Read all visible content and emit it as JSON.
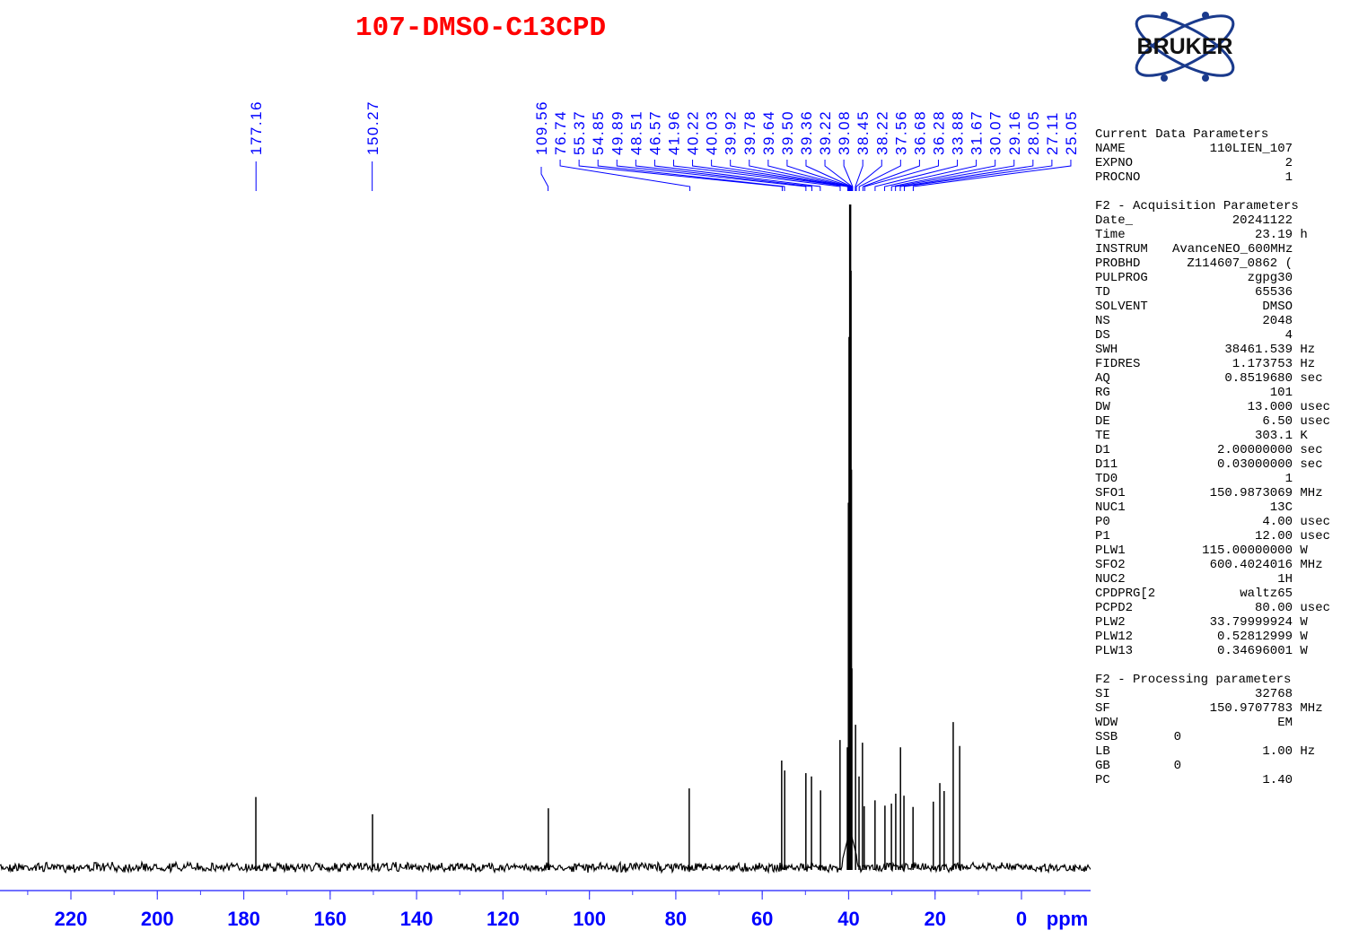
{
  "title": "107-DMSO-C13CPD",
  "logo_text": "BRUKER",
  "colors": {
    "title": "#ff0000",
    "labels": "#0000ff",
    "axis": "#0000ff",
    "spectrum": "#000000",
    "logo": "#1a3a8c"
  },
  "chart_data": {
    "type": "line",
    "title": "107-DMSO-C13CPD",
    "xlabel": "ppm",
    "xlim": [
      236.4,
      -16.0
    ],
    "x_reversed": true,
    "grid": false,
    "xticks": [
      220,
      200,
      180,
      160,
      140,
      120,
      100,
      80,
      60,
      40,
      20,
      0
    ],
    "xtick_labels": [
      "220",
      "200",
      "180",
      "160",
      "140",
      "120",
      "100",
      "80",
      "60",
      "40",
      "20",
      "0"
    ],
    "minor_tick_step": 10,
    "peak_labels": [
      "177.16",
      "150.27",
      "109.56",
      "76.74",
      "55.37",
      "54.85",
      "49.89",
      "48.51",
      "46.57",
      "41.96",
      "40.22",
      "40.03",
      "39.92",
      "39.78",
      "39.64",
      "39.50",
      "39.36",
      "39.22",
      "39.08",
      "38.45",
      "38.22",
      "37.56",
      "36.68",
      "36.28",
      "33.88",
      "31.67",
      "30.07",
      "29.16",
      "28.05",
      "27.11",
      "25.05"
    ],
    "peaks": [
      {
        "ppm": 177.2,
        "intensity": 10.6
      },
      {
        "ppm": 150.2,
        "intensity": 8.0
      },
      {
        "ppm": 109.5,
        "intensity": 8.9
      },
      {
        "ppm": 76.9,
        "intensity": 11.9
      },
      {
        "ppm": 55.5,
        "intensity": 16.1
      },
      {
        "ppm": 54.8,
        "intensity": 14.6
      },
      {
        "ppm": 49.9,
        "intensity": 14.2
      },
      {
        "ppm": 48.6,
        "intensity": 13.7
      },
      {
        "ppm": 46.5,
        "intensity": 11.6
      },
      {
        "ppm": 42.0,
        "intensity": 19.2
      },
      {
        "ppm": 40.3,
        "intensity": 18.1
      },
      {
        "ppm": 40.0,
        "intensity": 55
      },
      {
        "ppm": 39.85,
        "intensity": 80
      },
      {
        "ppm": 39.7,
        "intensity": 100
      },
      {
        "ppm": 39.6,
        "intensity": 100
      },
      {
        "ppm": 39.5,
        "intensity": 90
      },
      {
        "ppm": 39.4,
        "intensity": 60
      },
      {
        "ppm": 39.25,
        "intensity": 30
      },
      {
        "ppm": 38.4,
        "intensity": 21.5
      },
      {
        "ppm": 37.6,
        "intensity": 13.7
      },
      {
        "ppm": 36.8,
        "intensity": 18.8
      },
      {
        "ppm": 36.4,
        "intensity": 9.2
      },
      {
        "ppm": 33.9,
        "intensity": 10.1
      },
      {
        "ppm": 31.6,
        "intensity": 9.3
      },
      {
        "ppm": 30.1,
        "intensity": 9.6
      },
      {
        "ppm": 29.1,
        "intensity": 11.1
      },
      {
        "ppm": 28.0,
        "intensity": 18.1
      },
      {
        "ppm": 27.2,
        "intensity": 10.8
      },
      {
        "ppm": 25.1,
        "intensity": 9.1
      },
      {
        "ppm": 20.4,
        "intensity": 9.9
      },
      {
        "ppm": 18.9,
        "intensity": 12.7
      },
      {
        "ppm": 17.9,
        "intensity": 11.5
      },
      {
        "ppm": 15.8,
        "intensity": 21.9
      },
      {
        "ppm": 14.3,
        "intensity": 18.3
      }
    ]
  },
  "parameters": {
    "sections": [
      {
        "header": "Current Data Parameters",
        "rows": [
          {
            "name": "NAME",
            "value": "110LIEN_107",
            "unit": ""
          },
          {
            "name": "EXPNO",
            "value": "2",
            "unit": ""
          },
          {
            "name": "PROCNO",
            "value": "1",
            "unit": ""
          }
        ]
      },
      {
        "header": "F2 - Acquisition Parameters",
        "rows": [
          {
            "name": "Date_",
            "value": "20241122",
            "unit": ""
          },
          {
            "name": "Time",
            "value": "23.19",
            "unit": "h"
          },
          {
            "name": "INSTRUM",
            "value": "AvanceNEO_600MHz",
            "unit": ""
          },
          {
            "name": "PROBHD",
            "value": "Z114607_0862 (",
            "unit": ""
          },
          {
            "name": "PULPROG",
            "value": "zgpg30",
            "unit": ""
          },
          {
            "name": "TD",
            "value": "65536",
            "unit": ""
          },
          {
            "name": "SOLVENT",
            "value": "DMSO",
            "unit": ""
          },
          {
            "name": "NS",
            "value": "2048",
            "unit": ""
          },
          {
            "name": "DS",
            "value": "4",
            "unit": ""
          },
          {
            "name": "SWH",
            "value": "38461.539",
            "unit": "Hz"
          },
          {
            "name": "FIDRES",
            "value": "1.173753",
            "unit": "Hz"
          },
          {
            "name": "AQ",
            "value": "0.8519680",
            "unit": "sec"
          },
          {
            "name": "RG",
            "value": "101",
            "unit": ""
          },
          {
            "name": "DW",
            "value": "13.000",
            "unit": "usec"
          },
          {
            "name": "DE",
            "value": "6.50",
            "unit": "usec"
          },
          {
            "name": "TE",
            "value": "303.1",
            "unit": "K"
          },
          {
            "name": "D1",
            "value": "2.00000000",
            "unit": "sec"
          },
          {
            "name": "D11",
            "value": "0.03000000",
            "unit": "sec"
          },
          {
            "name": "TD0",
            "value": "1",
            "unit": ""
          },
          {
            "name": "SFO1",
            "value": "150.9873069",
            "unit": "MHz"
          },
          {
            "name": "NUC1",
            "value": "13C",
            "unit": ""
          },
          {
            "name": "P0",
            "value": "4.00",
            "unit": "usec"
          },
          {
            "name": "P1",
            "value": "12.00",
            "unit": "usec"
          },
          {
            "name": "PLW1",
            "value": "115.00000000",
            "unit": "W"
          },
          {
            "name": "SFO2",
            "value": "600.4024016",
            "unit": "MHz"
          },
          {
            "name": "NUC2",
            "value": "1H",
            "unit": ""
          },
          {
            "name": "CPDPRG[2",
            "value": "waltz65",
            "unit": ""
          },
          {
            "name": "PCPD2",
            "value": "80.00",
            "unit": "usec"
          },
          {
            "name": "PLW2",
            "value": "33.79999924",
            "unit": "W"
          },
          {
            "name": "PLW12",
            "value": "0.52812999",
            "unit": "W"
          },
          {
            "name": "PLW13",
            "value": "0.34696001",
            "unit": "W"
          }
        ]
      },
      {
        "header": "F2 - Processing parameters",
        "rows": [
          {
            "name": "SI",
            "value": "32768",
            "unit": ""
          },
          {
            "name": "SF",
            "value": "150.9707783",
            "unit": "MHz"
          },
          {
            "name": "WDW",
            "value": "EM",
            "unit": ""
          },
          {
            "name": "SSB",
            "value": "0",
            "unit": ""
          },
          {
            "name": "LB",
            "value": "1.00",
            "unit": "Hz"
          },
          {
            "name": "GB",
            "value": "0",
            "unit": ""
          },
          {
            "name": "PC",
            "value": "1.40",
            "unit": ""
          }
        ]
      }
    ]
  }
}
